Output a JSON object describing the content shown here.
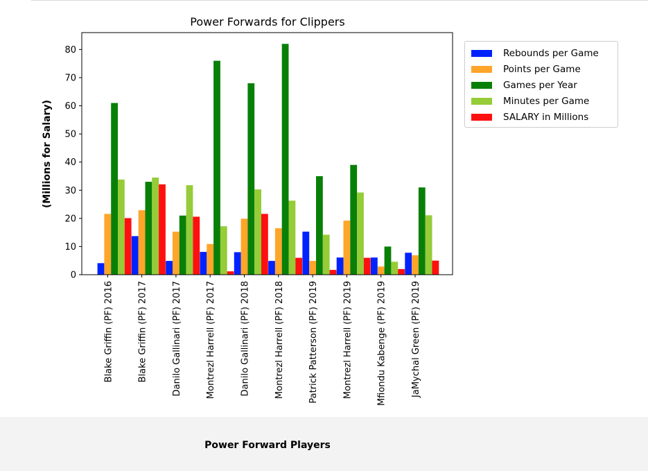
{
  "chart_data": {
    "type": "bar",
    "title": "Power Forwards for Clippers",
    "xlabel": "Power Forward Players",
    "ylabel": "(Millions for Salary)",
    "ylim": [
      0,
      86
    ],
    "yticks": [
      0,
      10,
      20,
      30,
      40,
      50,
      60,
      70,
      80
    ],
    "grid": false,
    "legend_position": "outside-right",
    "categories": [
      "Blake Griffin (PF) 2016",
      "Blake Griffin (PF) 2017",
      "Danilo Gallinari (PF) 2017",
      "Montrezl Harrell (PF) 2017",
      "Danilo Gallinari (PF) 2018",
      "Montrezl Harrell (PF) 2018",
      "Patrick Patterson (PF) 2019",
      "Montrezl Harrell (PF) 2019",
      "Mfiondu Kabenge (PF) 2019",
      "JaMychal Green (PF) 2019"
    ],
    "series": [
      {
        "name": "Rebounds per Game",
        "color": "#0022ff",
        "values": [
          4.1,
          13.7,
          4.9,
          8.1,
          8.0,
          4.9,
          15.3,
          6.1,
          6.1,
          7.8
        ]
      },
      {
        "name": "Points per Game",
        "color": "#ffa52a",
        "values": [
          21.6,
          22.9,
          15.3,
          10.9,
          19.9,
          16.5,
          4.9,
          19.2,
          2.9,
          6.9
        ]
      },
      {
        "name": "Games per Year",
        "color": "#088008",
        "values": [
          61,
          33,
          21,
          76,
          68,
          82,
          35,
          39,
          10,
          31
        ]
      },
      {
        "name": "Minutes per Game",
        "color": "#95cc38",
        "values": [
          33.8,
          34.5,
          31.8,
          17.2,
          30.3,
          26.3,
          14.2,
          29.2,
          4.6,
          21.1
        ]
      },
      {
        "name": "SALARY in Millions",
        "color": "#ff1010",
        "values": [
          20.1,
          32.1,
          20.6,
          1.2,
          21.6,
          6.0,
          1.7,
          6.0,
          2.0,
          5.0
        ]
      }
    ]
  }
}
